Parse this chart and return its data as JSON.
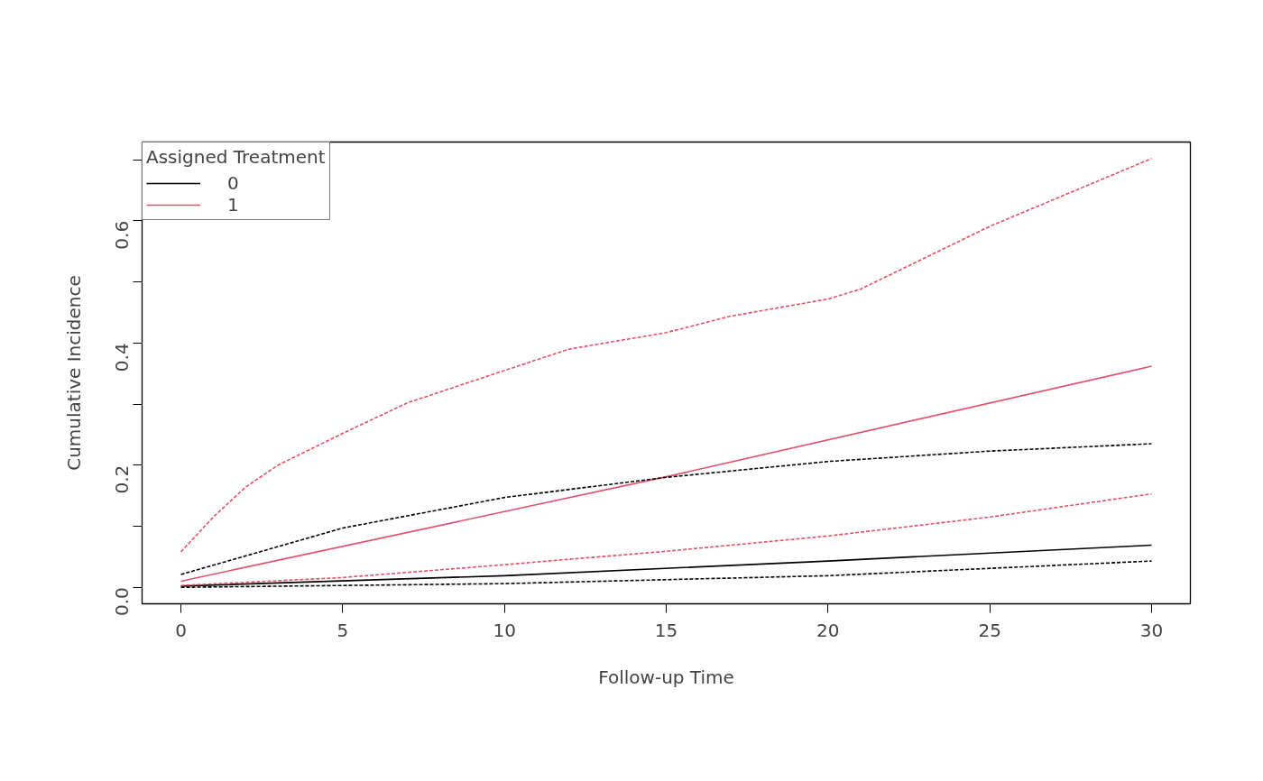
{
  "chart_data": {
    "type": "line",
    "xlabel": "Follow-up Time",
    "ylabel": "Cumulative Incidence",
    "legend_title": "Assigned Treatment",
    "xlim": [
      -1.2,
      31.2
    ],
    "ylim": [
      -0.027,
      0.729
    ],
    "xticks": [
      0,
      5,
      10,
      15,
      20,
      25,
      30
    ],
    "yticks": [
      {
        "value": 0.0,
        "label": "0.0"
      },
      {
        "value": 0.1,
        "label": null
      },
      {
        "value": 0.2,
        "label": "0.2"
      },
      {
        "value": 0.3,
        "label": null
      },
      {
        "value": 0.4,
        "label": "0.4"
      },
      {
        "value": 0.5,
        "label": null
      },
      {
        "value": 0.6,
        "label": "0.6"
      },
      {
        "value": 0.7,
        "label": null
      }
    ],
    "grid": false,
    "legend": "top left",
    "marker": "none",
    "series": [
      {
        "name": "0",
        "color": "#000000",
        "line_style": "solid",
        "x": [
          0,
          10,
          20,
          30
        ],
        "values": [
          0.002,
          0.019,
          0.043,
          0.069
        ]
      },
      {
        "name": "1",
        "color": "#df536b",
        "line_style": "solid",
        "x": [
          0,
          15,
          30
        ],
        "values": [
          0.01,
          0.181,
          0.362
        ]
      },
      {
        "color": "#000000",
        "line_style": "dashed",
        "x": [
          0,
          5,
          10,
          15,
          20,
          25,
          30
        ],
        "values": [
          0.021,
          0.097,
          0.147,
          0.18,
          0.206,
          0.223,
          0.235
        ]
      },
      {
        "color": "#000000",
        "line_style": "dashed",
        "x": [
          0,
          10,
          20,
          30
        ],
        "values": [
          0.0,
          0.006,
          0.019,
          0.043
        ]
      },
      {
        "color": "#df536b",
        "line_style": "dashed",
        "x": [
          0,
          1,
          2,
          3,
          5,
          7,
          10,
          12,
          15,
          17,
          20,
          21,
          25,
          30
        ],
        "values": [
          0.058,
          0.115,
          0.164,
          0.2,
          0.252,
          0.302,
          0.355,
          0.39,
          0.417,
          0.444,
          0.472,
          0.488,
          0.591,
          0.702
        ]
      },
      {
        "color": "#df536b",
        "line_style": "dashed",
        "x": [
          0,
          5,
          10,
          15,
          20,
          25,
          30
        ],
        "values": [
          0.003,
          0.016,
          0.037,
          0.059,
          0.084,
          0.115,
          0.153
        ]
      }
    ]
  }
}
